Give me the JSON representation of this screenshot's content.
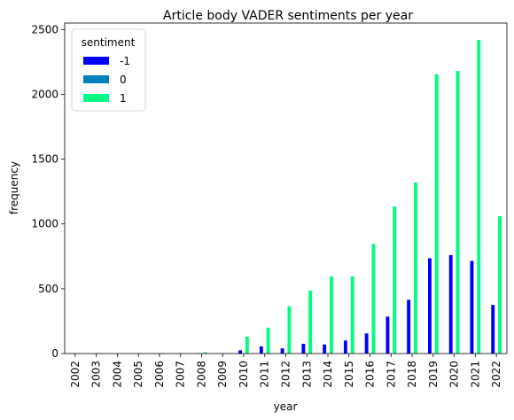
{
  "chart_data": {
    "type": "bar",
    "title": "Article body VADER sentiments per year",
    "xlabel": "year",
    "ylabel": "frequency",
    "ylim": [
      0,
      2550
    ],
    "yticks": [
      0,
      500,
      1000,
      1500,
      2000,
      2500
    ],
    "grid": false,
    "legend": {
      "title": "sentiment",
      "placement": "top-left"
    },
    "categories": [
      "2002",
      "2003",
      "2004",
      "2005",
      "2006",
      "2007",
      "2008",
      "2009",
      "2010",
      "2011",
      "2012",
      "2013",
      "2014",
      "2015",
      "2016",
      "2017",
      "2018",
      "2019",
      "2020",
      "2021",
      "2022"
    ],
    "series": [
      {
        "name": "-1",
        "color": "#0000ff",
        "values": [
          0,
          0,
          0,
          0,
          0,
          0,
          3,
          0,
          25,
          55,
          40,
          75,
          70,
          100,
          155,
          285,
          415,
          735,
          760,
          715,
          375
        ]
      },
      {
        "name": "0",
        "color": "#0080bf",
        "values": [
          0,
          0,
          0,
          0,
          0,
          0,
          0,
          0,
          0,
          0,
          0,
          0,
          0,
          0,
          0,
          0,
          0,
          0,
          0,
          0,
          0
        ]
      },
      {
        "name": "1",
        "color": "#00ff80",
        "values": [
          0,
          0,
          0,
          3,
          3,
          0,
          10,
          3,
          130,
          200,
          365,
          485,
          595,
          595,
          845,
          1135,
          1320,
          2155,
          2180,
          2420,
          1060
        ]
      }
    ]
  }
}
